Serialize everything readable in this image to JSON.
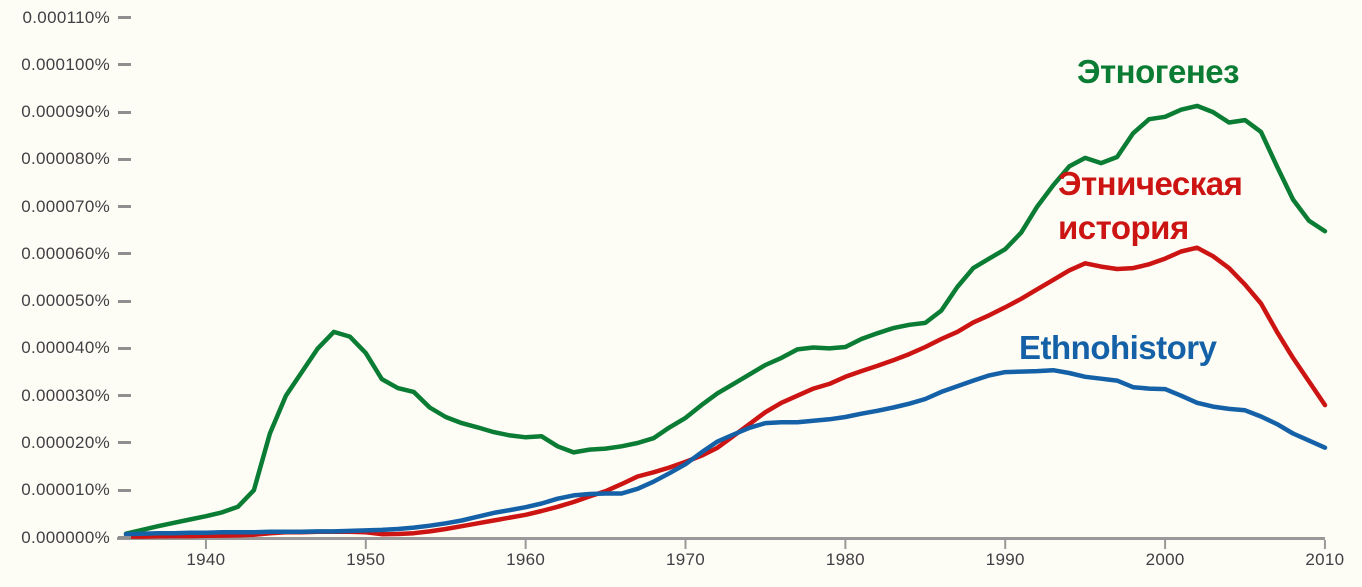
{
  "chart_data": {
    "type": "line",
    "title": "",
    "xlabel": "",
    "ylabel": "",
    "x_range": [
      1935,
      2010
    ],
    "year_start": 1935,
    "year_step": 1,
    "x_tick_years": [
      "1940",
      "1950",
      "1960",
      "1970",
      "1980",
      "1990",
      "2000",
      "2010"
    ],
    "y_tick_labels": [
      "0.000000%",
      "0.000010%",
      "0.000020%",
      "0.000030%",
      "0.000040%",
      "0.000050%",
      "0.000060%",
      "0.000070%",
      "0.000080%",
      "0.000090%",
      "0.000100%",
      "0.000110%"
    ],
    "y_range_percent": [
      0,
      0.00011
    ],
    "value_unit": "percent x 1e-6",
    "grid": "off",
    "legend": "inline-colored-labels",
    "background_color": "#fdfdf5",
    "axis_color": "#999999",
    "dash_color": "#8f8f8f",
    "tick_label_color": "#433e44",
    "series": [
      {
        "name": "Этногенез",
        "color": "#0b7c33",
        "label_lines": [
          "Этногенез"
        ],
        "values_1e6": [
          0.8,
          1.6,
          2.4,
          3.1,
          3.8,
          4.5,
          5.3,
          6.5,
          10,
          22,
          30,
          35,
          40,
          43.5,
          42.5,
          39,
          33.5,
          31.6,
          30.8,
          27.5,
          25.5,
          24.2,
          23.3,
          22.3,
          21.6,
          21.2,
          21.4,
          19.3,
          18,
          18.6,
          18.8,
          19.3,
          20,
          21,
          23.3,
          25.3,
          28,
          30.5,
          32.5,
          34.5,
          36.5,
          38,
          39.8,
          40.2,
          40,
          40.3,
          42,
          43.2,
          44.3,
          45,
          45.4,
          48,
          53,
          57,
          59,
          61,
          64.5,
          70,
          74.5,
          78.5,
          80.3,
          79.2,
          80.5,
          85.5,
          88.5,
          89,
          90.5,
          91.3,
          90,
          87.8,
          88.3,
          85.8,
          78.5,
          71.5,
          67,
          64.8
        ]
      },
      {
        "name": "Этническая история",
        "color": "#cc1413",
        "label_lines": [
          "Этническая",
          "история"
        ],
        "values_1e6": [
          0.2,
          0.2,
          0.25,
          0.3,
          0.3,
          0.35,
          0.4,
          0.45,
          0.6,
          0.9,
          1.1,
          1.1,
          1.2,
          1.2,
          1.2,
          1.1,
          0.7,
          0.75,
          0.9,
          1.3,
          1.8,
          2.4,
          3,
          3.6,
          4.2,
          4.8,
          5.6,
          6.5,
          7.5,
          8.7,
          9.8,
          11.3,
          12.9,
          13.8,
          14.8,
          16,
          17.3,
          19,
          21.5,
          24,
          26.5,
          28.5,
          30,
          31.5,
          32.5,
          34,
          35.2,
          36.3,
          37.5,
          38.8,
          40.3,
          42,
          43.5,
          45.5,
          47,
          48.7,
          50.5,
          52.5,
          54.5,
          56.5,
          58,
          57.3,
          56.8,
          57,
          57.8,
          59,
          60.5,
          61.3,
          59.5,
          57,
          53.5,
          49.5,
          43.5,
          38,
          33,
          28
        ]
      },
      {
        "name": "Ethnohistory",
        "color": "#1561a8",
        "label_lines": [
          "Ethnohistory"
        ],
        "values_1e6": [
          0.7,
          0.8,
          0.9,
          0.9,
          1,
          1,
          1.1,
          1.1,
          1.1,
          1.2,
          1.2,
          1.2,
          1.3,
          1.3,
          1.4,
          1.5,
          1.6,
          1.8,
          2.1,
          2.5,
          3,
          3.6,
          4.4,
          5.2,
          5.8,
          6.4,
          7.2,
          8.2,
          8.9,
          9.2,
          9.3,
          9.3,
          10.3,
          11.8,
          13.6,
          15.5,
          18,
          20.3,
          21.8,
          23.2,
          24.2,
          24.4,
          24.4,
          24.7,
          25,
          25.5,
          26.2,
          26.8,
          27.5,
          28.3,
          29.3,
          30.8,
          32,
          33.2,
          34.3,
          35,
          35.1,
          35.2,
          35.4,
          34.8,
          34,
          33.6,
          33.2,
          31.8,
          31.5,
          31.4,
          30,
          28.5,
          27.7,
          27.2,
          26.9,
          25.6,
          24,
          22,
          20.5,
          19
        ]
      }
    ]
  }
}
